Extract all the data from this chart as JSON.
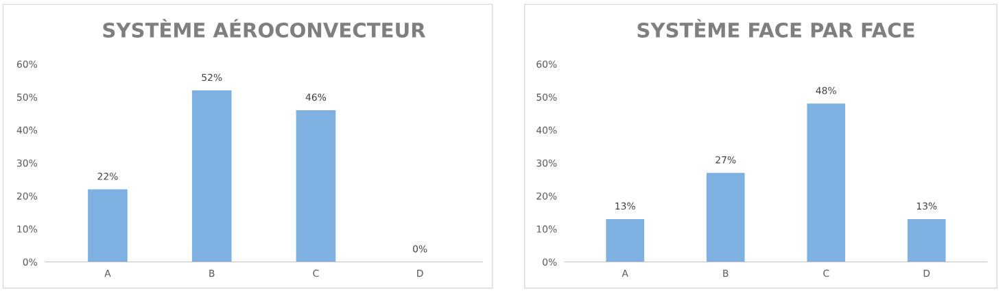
{
  "chart_data": [
    {
      "type": "bar",
      "title": "SYSTÈME AÉROCONVECTEUR",
      "categories": [
        "A",
        "B",
        "C",
        "D"
      ],
      "values": [
        22,
        52,
        46,
        0
      ],
      "color": "#7eb0e2",
      "value_labels": [
        "22%",
        "52%",
        "46%",
        "0%"
      ],
      "ylim": [
        0,
        60
      ],
      "yticks": [
        {
          "value": 0,
          "label": "0%"
        },
        {
          "value": 10,
          "label": "10%"
        },
        {
          "value": 20,
          "label": "20%"
        },
        {
          "value": 30,
          "label": "30%"
        },
        {
          "value": 40,
          "label": "40%"
        },
        {
          "value": 50,
          "label": "50%"
        },
        {
          "value": 60,
          "label": "60%"
        }
      ],
      "grid": false,
      "legend": false
    },
    {
      "type": "bar",
      "title": "SYSTÈME FACE PAR FACE",
      "categories": [
        "A",
        "B",
        "C",
        "D"
      ],
      "values": [
        13,
        27,
        48,
        13
      ],
      "color": "#7eb0e2",
      "value_labels": [
        "13%",
        "27%",
        "48%",
        "13%"
      ],
      "ylim": [
        0,
        60
      ],
      "yticks": [
        {
          "value": 0,
          "label": "0%"
        },
        {
          "value": 10,
          "label": "10%"
        },
        {
          "value": 20,
          "label": "20%"
        },
        {
          "value": 30,
          "label": "30%"
        },
        {
          "value": 40,
          "label": "40%"
        },
        {
          "value": 50,
          "label": "50%"
        },
        {
          "value": 60,
          "label": "60%"
        }
      ],
      "grid": false,
      "legend": false
    }
  ]
}
